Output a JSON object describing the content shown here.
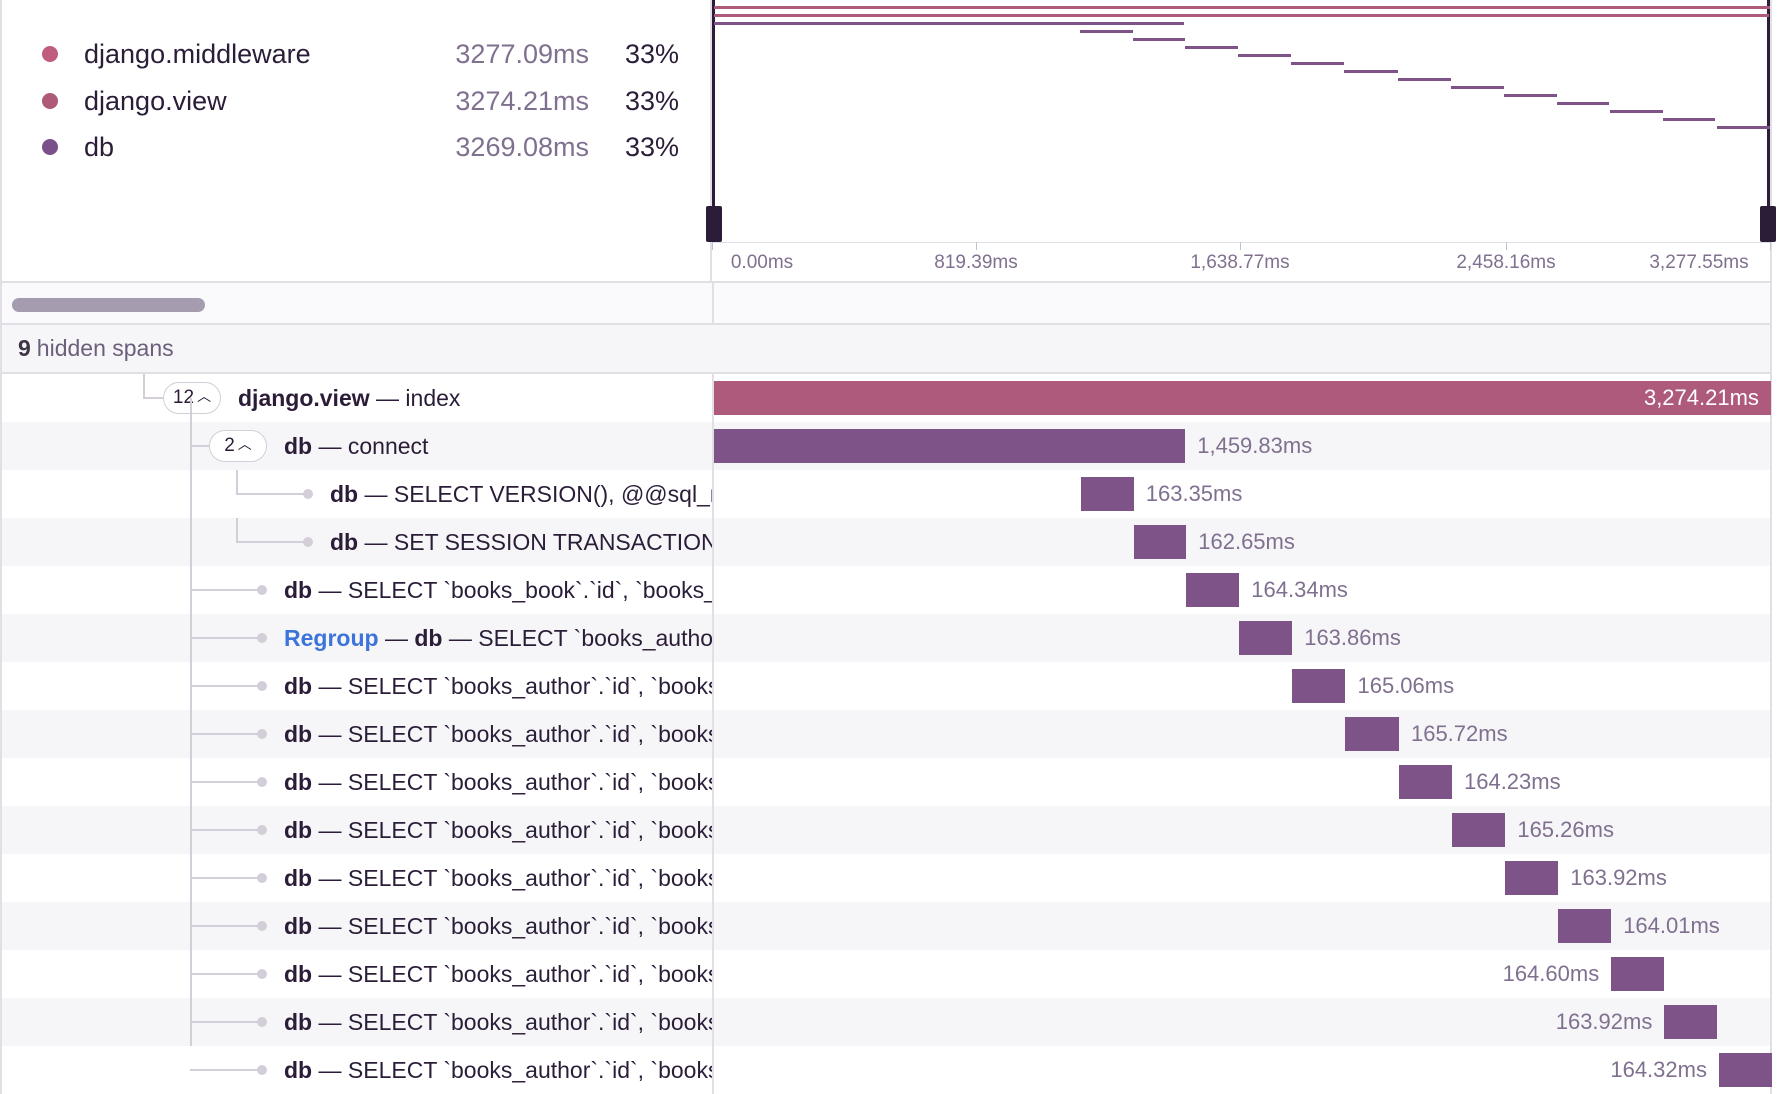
{
  "legend": [
    {
      "name": "django.middleware",
      "duration": "3277.09ms",
      "percent": "33%",
      "color": "#c05d7e"
    },
    {
      "name": "django.view",
      "duration": "3274.21ms",
      "percent": "33%",
      "color": "#b05a7a"
    },
    {
      "name": "db",
      "duration": "3269.08ms",
      "percent": "33%",
      "color": "#7b4f8a"
    }
  ],
  "axis_ticks": [
    "0.00ms",
    "819.39ms",
    "1,638.77ms",
    "2,458.16ms",
    "3,277.55ms"
  ],
  "hidden_spans": {
    "count": "9",
    "label": "hidden spans"
  },
  "spans": [
    {
      "op": "django.view",
      "sep": " — ",
      "desc": "index",
      "toggle": "12",
      "duration": "3,274.21ms",
      "start": 0.0,
      "end": 3274.21
    },
    {
      "op": "db",
      "sep": " — ",
      "desc": "connect",
      "toggle": "2",
      "duration": "1,459.83ms",
      "start": 0.0,
      "end": 1459.83
    },
    {
      "op": "db",
      "sep": " — ",
      "desc": "SELECT VERSION(), @@sql_mode",
      "duration": "163.35ms",
      "start": 1137.0,
      "end": 1300.35
    },
    {
      "op": "db",
      "sep": " — ",
      "desc": "SET SESSION TRANSACTION ISOLATION LEVEL",
      "duration": "162.65ms",
      "start": 1300.35,
      "end": 1463.0
    },
    {
      "op": "db",
      "sep": " — ",
      "desc": "SELECT `books_book`.`id`, `books_book`.`title`",
      "duration": "164.34ms",
      "start": 1463.0,
      "end": 1627.34
    },
    {
      "regroup": "Regroup",
      "op": "db",
      "sep": " — ",
      "desc": "SELECT `books_author`.`id`, `books_author`.`name`",
      "duration": "163.86ms",
      "start": 1627.34,
      "end": 1791.2
    },
    {
      "op": "db",
      "sep": " — ",
      "desc": "SELECT `books_author`.`id`, `books_author`.`name`",
      "duration": "165.06ms",
      "start": 1791.2,
      "end": 1956.26
    },
    {
      "op": "db",
      "sep": " — ",
      "desc": "SELECT `books_author`.`id`, `books_author`.`name`",
      "duration": "165.72ms",
      "start": 1956.26,
      "end": 2121.98
    },
    {
      "op": "db",
      "sep": " — ",
      "desc": "SELECT `books_author`.`id`, `books_author`.`name`",
      "duration": "164.23ms",
      "start": 2121.98,
      "end": 2286.21
    },
    {
      "op": "db",
      "sep": " — ",
      "desc": "SELECT `books_author`.`id`, `books_author`.`name`",
      "duration": "165.26ms",
      "start": 2286.21,
      "end": 2451.47
    },
    {
      "op": "db",
      "sep": " — ",
      "desc": "SELECT `books_author`.`id`, `books_author`.`name`",
      "duration": "163.92ms",
      "start": 2451.47,
      "end": 2615.39
    },
    {
      "op": "db",
      "sep": " — ",
      "desc": "SELECT `books_author`.`id`, `books_author`.`name`",
      "duration": "164.01ms",
      "start": 2615.39,
      "end": 2779.4
    },
    {
      "op": "db",
      "sep": " — ",
      "desc": "SELECT `books_author`.`id`, `books_author`.`name`",
      "duration": "164.60ms",
      "start": 2779.4,
      "end": 2944.0
    },
    {
      "op": "db",
      "sep": " — ",
      "desc": "SELECT `books_author`.`id`, `books_author`.`name`",
      "duration": "163.92ms",
      "start": 2944.0,
      "end": 3107.92
    },
    {
      "op": "db",
      "sep": " — ",
      "desc": "SELECT `books_author`.`id`, `books_author`.`name`",
      "duration": "164.32ms",
      "start": 3113.23,
      "end": 3277.55
    }
  ],
  "timeline": {
    "min": 0.0,
    "max": 3277.55
  },
  "colors": {
    "view": "#ae5a7d",
    "db": "#7e5388",
    "middleware": "#b05a7a"
  }
}
